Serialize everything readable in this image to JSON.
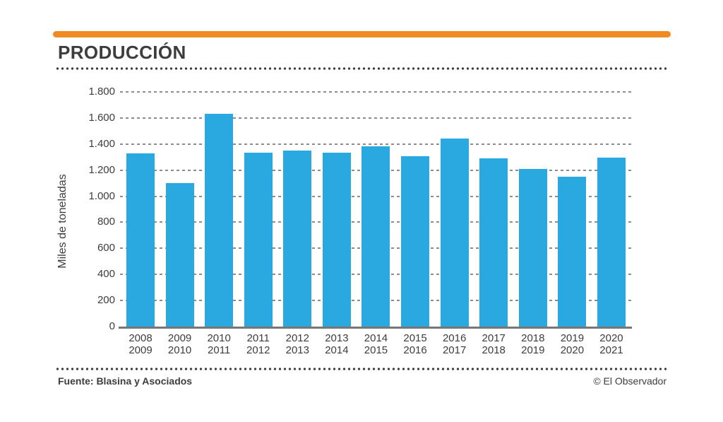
{
  "title": "PRODUCCIÓN",
  "source": "Fuente: Blasina y Asociados",
  "credit": "© El Observador",
  "colors": {
    "accent_orange": "#ef8b22",
    "bar_blue": "#29a9e0",
    "text_dark": "#3d3d3d",
    "grid_gray": "#8c8c8c",
    "axis_gray": "#777777"
  },
  "chart_data": {
    "type": "bar",
    "title": "PRODUCCIÓN",
    "ylabel": "Miles de toneladas",
    "xlabel": "",
    "ylim": [
      0,
      1800
    ],
    "ytick_step": 200,
    "ytick_labels": [
      "0",
      "200",
      "400",
      "600",
      "800",
      "1.000",
      "1.200",
      "1.400",
      "1.600",
      "1.800"
    ],
    "grid": true,
    "grid_style": "dashed",
    "legend": "none",
    "categories": [
      [
        "2008",
        "2009"
      ],
      [
        "2009",
        "2010"
      ],
      [
        "2010",
        "2011"
      ],
      [
        "2011",
        "2012"
      ],
      [
        "2012",
        "2013"
      ],
      [
        "2013",
        "2014"
      ],
      [
        "2014",
        "2015"
      ],
      [
        "2015",
        "2016"
      ],
      [
        "2016",
        "2017"
      ],
      [
        "2017",
        "2018"
      ],
      [
        "2018",
        "2019"
      ],
      [
        "2019",
        "2020"
      ],
      [
        "2020",
        "2021"
      ]
    ],
    "values": [
      1330,
      1100,
      1630,
      1335,
      1350,
      1335,
      1380,
      1305,
      1440,
      1290,
      1210,
      1150,
      1295
    ]
  }
}
